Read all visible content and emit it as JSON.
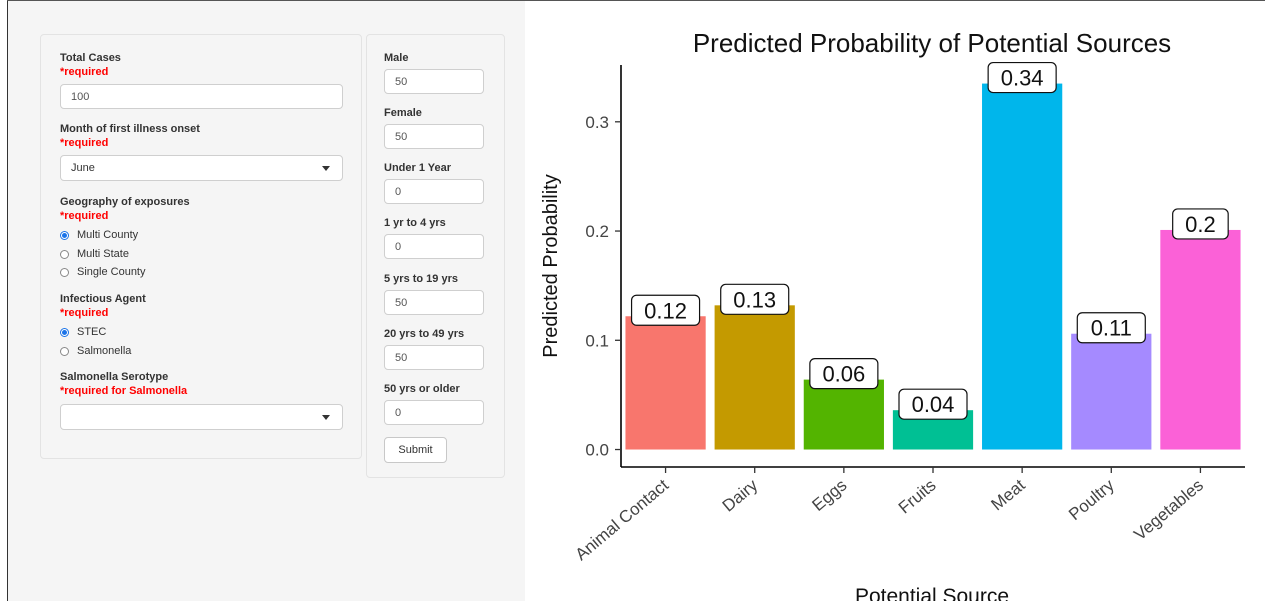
{
  "form": {
    "total_cases": {
      "label": "Total Cases",
      "required": "*required",
      "value": "100"
    },
    "month_onset": {
      "label": "Month of first illness onset",
      "required": "*required",
      "value": "June"
    },
    "geography": {
      "label": "Geography of exposures",
      "required": "*required",
      "options": [
        "Multi County",
        "Multi State",
        "Single County"
      ],
      "selected": "Multi County"
    },
    "agent": {
      "label": "Infectious Agent",
      "required": "*required",
      "options": [
        "STEC",
        "Salmonella"
      ],
      "selected": "STEC"
    },
    "serotype": {
      "label": "Salmonella Serotype",
      "required": "*required for Salmonella",
      "value": ""
    }
  },
  "demographics": {
    "male": {
      "label": "Male",
      "value": "50"
    },
    "female": {
      "label": "Female",
      "value": "50"
    },
    "under_1": {
      "label": "Under 1 Year",
      "value": "0"
    },
    "yr1_4": {
      "label": "1 yr to 4 yrs",
      "value": "0"
    },
    "yr5_19": {
      "label": "5 yrs to 19 yrs",
      "value": "50"
    },
    "yr20_49": {
      "label": "20 yrs to 49 yrs",
      "value": "50"
    },
    "yr50": {
      "label": "50 yrs or older",
      "value": "0"
    },
    "submit_label": "Submit"
  },
  "chart_data": {
    "type": "bar",
    "title": "Predicted Probability of Potential Sources",
    "xlabel": "Potential Source",
    "ylabel": "Predicted Probability",
    "categories": [
      "Animal Contact",
      "Dairy",
      "Eggs",
      "Fruits",
      "Meat",
      "Poultry",
      "Vegetables"
    ],
    "values": [
      0.122,
      0.132,
      0.064,
      0.036,
      0.335,
      0.106,
      0.201
    ],
    "labels": [
      "0.12",
      "0.13",
      "0.06",
      "0.04",
      "0.34",
      "0.11",
      "0.2"
    ],
    "colors": [
      "#F8766D",
      "#C49A00",
      "#53B400",
      "#00C094",
      "#00B6EB",
      "#A58AFF",
      "#FB61D7"
    ],
    "yticks": [
      0.0,
      0.1,
      0.2,
      0.3
    ],
    "ytick_labels": [
      "0.0",
      "0.1",
      "0.2",
      "0.3"
    ],
    "ylim": [
      -0.016,
      0.352
    ],
    "grid": false,
    "legend": "none"
  }
}
